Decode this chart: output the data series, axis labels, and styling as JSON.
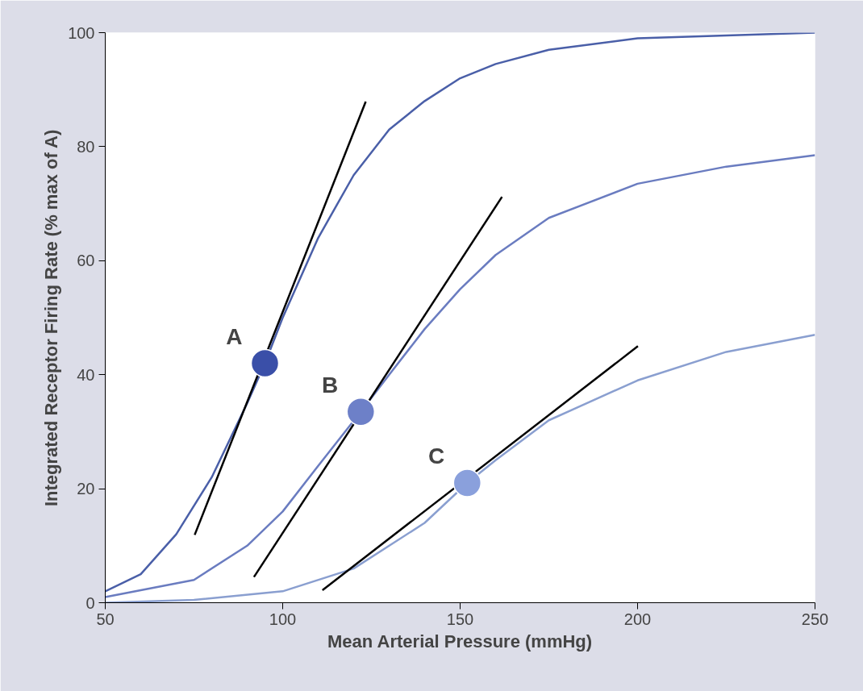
{
  "chart_data": {
    "type": "line",
    "xlabel": "Mean Arterial Pressure (mmHg)",
    "ylabel": "Integrated Receptor Firing Rate (% max of A)",
    "xlim": [
      50,
      250
    ],
    "xticks": [
      50,
      100,
      150,
      200,
      250
    ],
    "ylim": [
      0,
      100
    ],
    "yticks": [
      0,
      20,
      40,
      60,
      80,
      100
    ],
    "grid": false,
    "series": [
      {
        "color": "#4a5fa8",
        "x": [
          50,
          60,
          70,
          80,
          90,
          95,
          100,
          110,
          120,
          130,
          140,
          150,
          160,
          175,
          200,
          225,
          250
        ],
        "values": [
          2,
          5,
          12,
          22,
          35,
          42,
          50,
          64,
          75,
          83,
          88,
          92,
          94.5,
          97,
          99,
          99.5,
          100
        ]
      },
      {
        "color": "#6a7cc0",
        "x": [
          50,
          75,
          90,
          100,
          110,
          122,
          130,
          140,
          150,
          160,
          175,
          200,
          225,
          250
        ],
        "values": [
          1,
          4,
          10,
          16,
          24,
          33.5,
          40,
          48,
          55,
          61,
          67.5,
          73.5,
          76.5,
          78.5
        ]
      },
      {
        "color": "#8a9fd0",
        "x": [
          50,
          75,
          100,
          120,
          140,
          152,
          160,
          175,
          200,
          225,
          250
        ],
        "values": [
          0,
          0.5,
          2,
          6,
          14,
          21,
          25,
          32,
          39,
          44,
          47
        ]
      },
      {
        "color": "#000000",
        "x": [
          75.2,
          123.4
        ],
        "values": [
          11.9,
          87.9
        ]
      },
      {
        "color": "#000000",
        "x": [
          91.9,
          161.8
        ],
        "values": [
          4.5,
          71.2
        ]
      },
      {
        "color": "#000000",
        "x": [
          111.2,
          200.1
        ],
        "values": [
          2.2,
          45.0
        ]
      },
      {
        "type": "scatter",
        "color": "#3a4fa8",
        "x": [
          95
        ],
        "values": [
          42
        ]
      },
      {
        "type": "scatter",
        "color": "#6d80c8",
        "x": [
          122
        ],
        "values": [
          33.5
        ]
      },
      {
        "type": "scatter",
        "color": "#8aa0dc",
        "x": [
          152
        ],
        "values": [
          21
        ]
      }
    ],
    "annotations": [
      {
        "text": "A",
        "x": 95,
        "y": 42
      },
      {
        "text": "B",
        "x": 122,
        "y": 33.5
      },
      {
        "text": "C",
        "x": 152,
        "y": 21
      }
    ]
  }
}
